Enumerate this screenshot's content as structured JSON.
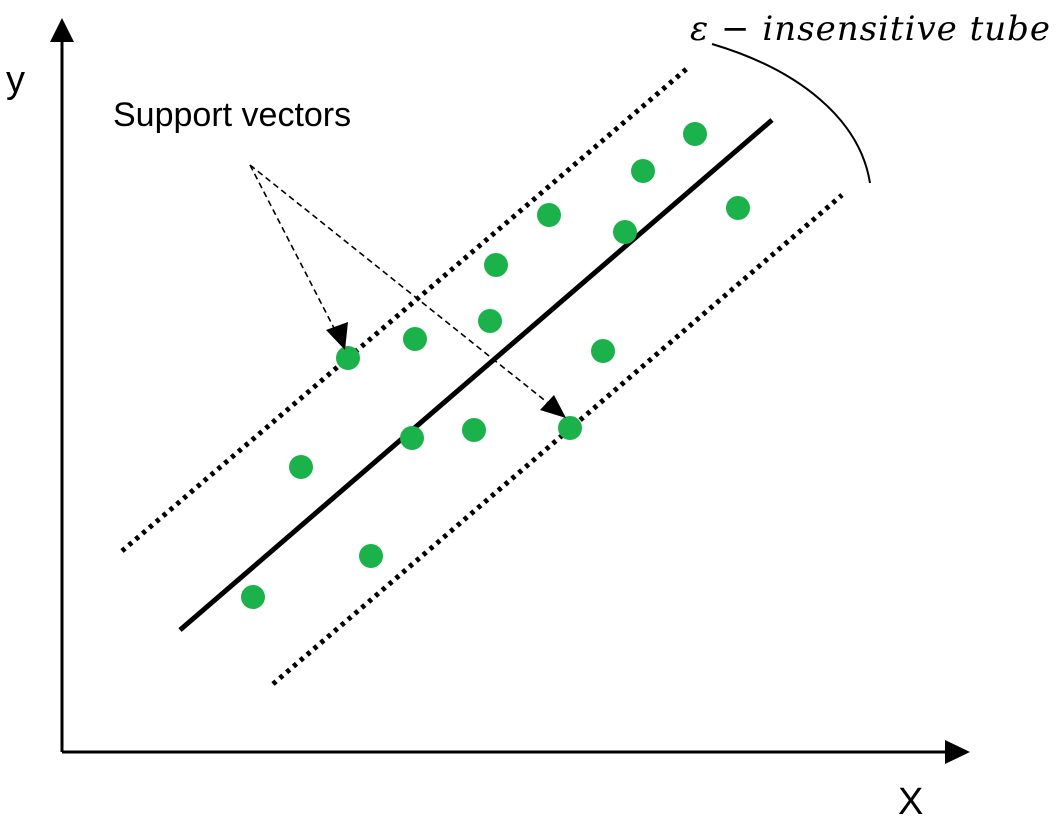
{
  "labels": {
    "y_axis": "y",
    "x_axis": "X",
    "support_vectors": "Support vectors",
    "tube": "ε − insensitive tube"
  },
  "colors": {
    "point": "#1cb24b",
    "line": "#000000"
  },
  "points": [
    {
      "kind": "data"
    },
    {
      "kind": "data"
    },
    {
      "kind": "data"
    },
    {
      "kind": "data"
    },
    {
      "kind": "data"
    },
    {
      "kind": "data"
    },
    {
      "kind": "data"
    },
    {
      "kind": "data"
    },
    {
      "kind": "data"
    },
    {
      "kind": "data"
    },
    {
      "kind": "data"
    },
    {
      "kind": "data"
    },
    {
      "kind": "data"
    },
    {
      "kind": "data"
    },
    {
      "kind": "support-vector"
    },
    {
      "kind": "support-vector"
    }
  ]
}
